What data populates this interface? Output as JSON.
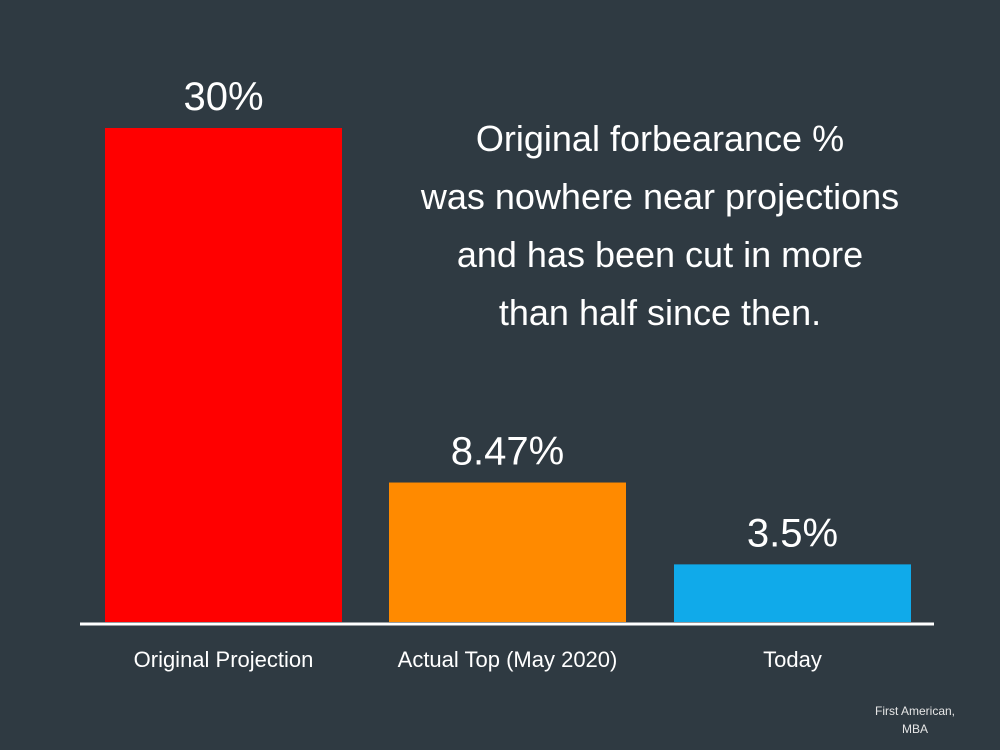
{
  "chart_data": {
    "type": "bar",
    "title": "",
    "xlabel": "",
    "ylabel": "",
    "categories": [
      "Original Projection",
      "Actual Top (May 2020)",
      "Today"
    ],
    "values": [
      30,
      8.47,
      3.5
    ],
    "value_labels": [
      "30%",
      "8.47%",
      "3.5%"
    ],
    "ylim": [
      0,
      30
    ],
    "grid": false,
    "legend": "none",
    "colors": [
      "#ff0000",
      "#ff8a00",
      "#10aaea"
    ]
  },
  "annotation": {
    "lines": [
      "Original forbearance %",
      "was nowhere near projections",
      "and has been cut in more",
      "than half since then."
    ]
  },
  "source": {
    "lines": [
      "First American,",
      "MBA"
    ]
  },
  "theme": {
    "background": "#2f3a42",
    "axis_color": "#ffffff",
    "text_color": "#ffffff"
  }
}
